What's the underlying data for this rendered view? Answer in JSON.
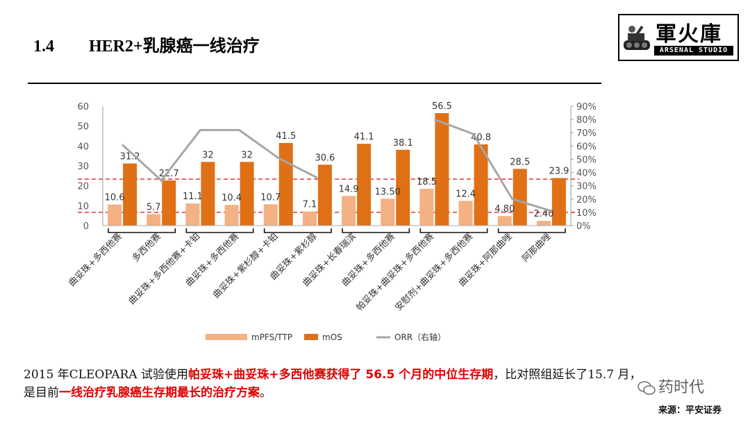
{
  "header": {
    "section_number": "1.4",
    "title": "HER2+乳腺癌一线治疗"
  },
  "logo": {
    "name_cn": "軍火庫",
    "name_en": "ARSENAL STUDIO"
  },
  "chart_data": {
    "type": "bar",
    "categories": [
      "曲妥珠+多西他赛",
      "多西他赛",
      "曲妥珠+多西他赛+卡铂",
      "曲妥珠+多西他赛",
      "曲妥珠+紫杉醇+卡铂",
      "曲妥珠+紫杉醇",
      "曲妥珠+长春瑞滨",
      "曲妥珠+多西他赛",
      "帕妥珠+曲妥珠+多西他赛",
      "安慰剂+曲妥珠+多西他赛",
      "曲妥珠+阿那曲唑",
      "阿那曲唑"
    ],
    "series": [
      {
        "name": "mPFS/TTP",
        "color": "#f4b183",
        "values": [
          10.6,
          5.7,
          11.1,
          10.4,
          10.7,
          7.1,
          14.9,
          13.5,
          18.5,
          12.4,
          4.8,
          2.4
        ],
        "labels": [
          "10.6",
          "5.7",
          "11.1",
          "10.4",
          "10.7",
          "7.1",
          "14.9",
          "13.50",
          "18.5",
          "12.4",
          "4.80",
          "2.40"
        ]
      },
      {
        "name": "mOS",
        "color": "#e07016",
        "values": [
          31.2,
          22.7,
          32,
          32,
          41.5,
          30.6,
          41.1,
          38.1,
          56.5,
          40.8,
          28.5,
          23.9
        ],
        "labels": [
          "31.2",
          "22.7",
          "32",
          "32",
          "41.5",
          "30.6",
          "41.1",
          "38.1",
          "56.5",
          "40.8",
          "28.5",
          "23.9"
        ]
      },
      {
        "name": "ORR（右轴）",
        "color": "#a6a6a6",
        "axis": "right",
        "values": [
          0.61,
          0.34,
          0.72,
          0.72,
          0.51,
          0.36,
          null,
          null,
          0.8,
          0.69,
          0.2,
          0.11
        ]
      }
    ],
    "y_left": {
      "min": 0,
      "max": 60,
      "ticks": [
        "0",
        "10",
        "20",
        "30",
        "40",
        "50",
        "60"
      ]
    },
    "y_right": {
      "min": 0,
      "max": 0.9,
      "ticks": [
        "0%",
        "10%",
        "20%",
        "30%",
        "40%",
        "50%",
        "60%",
        "70%",
        "80%",
        "90%"
      ]
    },
    "reference_lines_right_axis": [
      0.35,
      0.1
    ],
    "grid": false,
    "legend_position": "bottom"
  },
  "caption": {
    "p1": "2015 年CLEOPARA 试验使用",
    "h1": "帕妥珠+曲妥珠+多西他赛获得了 56.5 个月的中位生存期",
    "p2": "，比对照组延长了15.7 月，",
    "p3": "是目前",
    "h2": "一线治疗乳腺癌生存期最长的治疗方案",
    "p4": "。"
  },
  "watermark": "药时代",
  "source": "来源：平安证券"
}
